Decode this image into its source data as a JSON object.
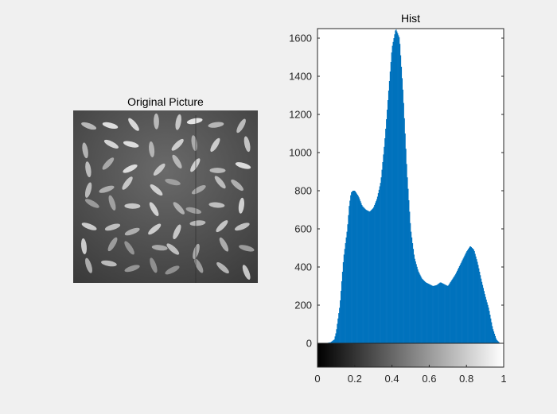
{
  "figure": {
    "background": "#f0f0f0"
  },
  "picture_panel": {
    "title": "Original Picture",
    "description_icon": "rice-grains-grayscale-image"
  },
  "chart_data": {
    "type": "bar",
    "title": "Hist",
    "xlabel": "",
    "ylabel": "",
    "xlim": [
      0,
      1
    ],
    "ylim": [
      0,
      1650
    ],
    "xticks": [
      0,
      0.2,
      0.4,
      0.6,
      0.8,
      1
    ],
    "xtick_labels": [
      "0",
      "0.2",
      "0.4",
      "0.6",
      "0.8",
      "1"
    ],
    "yticks": [
      0,
      200,
      400,
      600,
      800,
      1000,
      1200,
      1400,
      1600
    ],
    "ytick_labels": [
      "0",
      "200",
      "400",
      "600",
      "800",
      "1000",
      "1200",
      "1400",
      "1600"
    ],
    "bar_color": "#0072bd",
    "colorbar": {
      "from": "#000000",
      "to": "#ffffff"
    },
    "x": [
      0.04,
      0.07,
      0.09,
      0.1,
      0.12,
      0.14,
      0.16,
      0.17,
      0.18,
      0.19,
      0.2,
      0.22,
      0.24,
      0.26,
      0.28,
      0.3,
      0.32,
      0.34,
      0.36,
      0.38,
      0.4,
      0.42,
      0.44,
      0.46,
      0.48,
      0.5,
      0.52,
      0.54,
      0.56,
      0.58,
      0.6,
      0.62,
      0.64,
      0.66,
      0.68,
      0.7,
      0.72,
      0.74,
      0.76,
      0.78,
      0.8,
      0.82,
      0.84,
      0.86,
      0.88,
      0.9,
      0.92,
      0.94,
      0.96,
      0.98
    ],
    "values": [
      0,
      5,
      20,
      60,
      200,
      450,
      600,
      720,
      790,
      800,
      800,
      770,
      720,
      700,
      690,
      710,
      760,
      850,
      1050,
      1300,
      1550,
      1650,
      1600,
      1300,
      900,
      600,
      450,
      380,
      340,
      320,
      310,
      300,
      305,
      320,
      310,
      300,
      330,
      360,
      400,
      440,
      480,
      510,
      490,
      420,
      330,
      250,
      180,
      80,
      20,
      0
    ]
  }
}
